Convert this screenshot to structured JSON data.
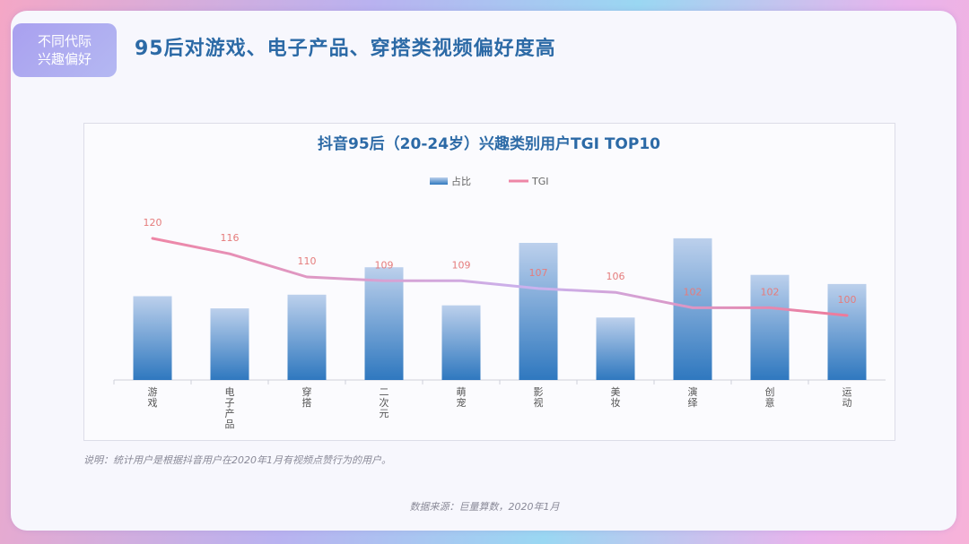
{
  "tag": {
    "line1": "不同代际",
    "line2": "兴趣偏好"
  },
  "headline": "95后对游戏、电子产品、穿搭类视频偏好度高",
  "note": "说明：统计用户是根据抖音用户在2020年1月有视频点赞行为的用户。",
  "source": "数据来源：巨量算数，2020年1月",
  "colors": {
    "bar_top": "#bcd0ec",
    "bar_bottom": "#2f78bf",
    "line": "#e98aa6",
    "label": "#e57c7c"
  },
  "chart_data": {
    "type": "bar",
    "title": "抖音95后（20-24岁）兴趣类别用户TGI TOP10",
    "legend": [
      "占比",
      "TGI"
    ],
    "legend_position": "top",
    "categories": [
      "游戏",
      "电子产品",
      "穿搭",
      "二次元",
      "萌宠",
      "影视",
      "美妆",
      "演绎",
      "创意",
      "运动"
    ],
    "series": [
      {
        "name": "占比",
        "type": "bar",
        "values": [
          0.55,
          0.47,
          0.56,
          0.74,
          0.49,
          0.9,
          0.41,
          0.93,
          0.69,
          0.63
        ]
      },
      {
        "name": "TGI",
        "type": "line",
        "values": [
          120,
          116,
          110,
          109,
          109,
          107,
          106,
          102,
          102,
          100
        ]
      }
    ]
  }
}
